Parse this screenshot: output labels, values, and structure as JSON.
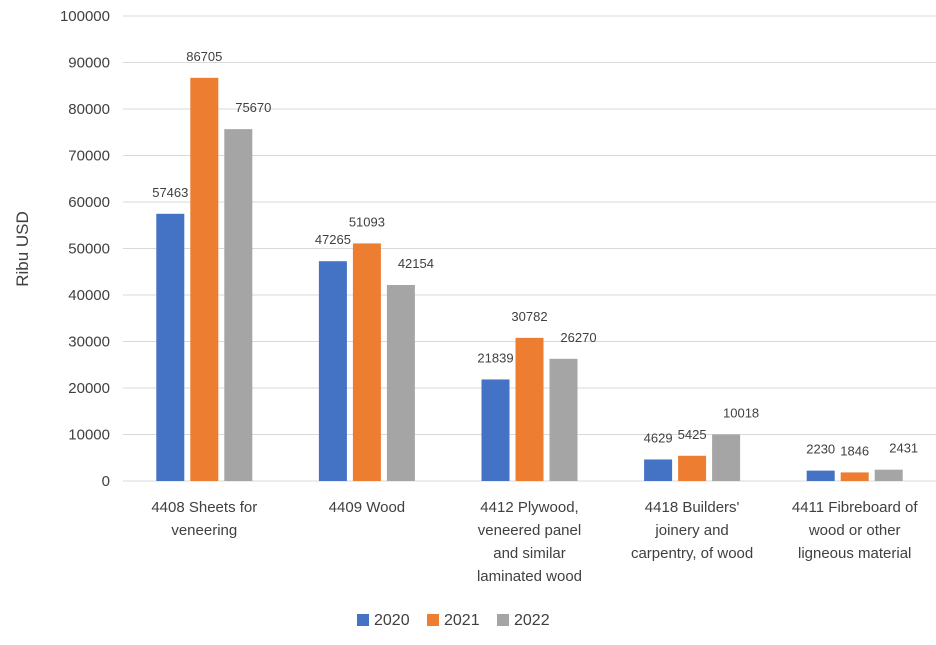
{
  "chart_data": {
    "type": "bar",
    "ylabel": "Ribu USD",
    "xlabel": "",
    "ylim": [
      0,
      100000
    ],
    "yticks": [
      0,
      10000,
      20000,
      30000,
      40000,
      50000,
      60000,
      70000,
      80000,
      90000,
      100000
    ],
    "grid": true,
    "legend_position": "bottom",
    "categories": [
      [
        "4408 Sheets for",
        "veneering"
      ],
      [
        "4409 Wood"
      ],
      [
        "4412 Plywood,",
        "veneered panel",
        "and similar",
        "laminated wood"
      ],
      [
        "4418 Builders'",
        "joinery and",
        "carpentry, of wood"
      ],
      [
        "4411 Fibreboard of",
        "wood or other",
        "ligneous material"
      ]
    ],
    "series": [
      {
        "name": "2020",
        "color": "#4472c4",
        "values": [
          57463,
          47265,
          21839,
          4629,
          2230
        ]
      },
      {
        "name": "2021",
        "color": "#ed7d31",
        "values": [
          86705,
          51093,
          30782,
          5425,
          1846
        ]
      },
      {
        "name": "2022",
        "color": "#a5a5a5",
        "values": [
          75670,
          42154,
          26270,
          10018,
          2431
        ]
      }
    ]
  }
}
